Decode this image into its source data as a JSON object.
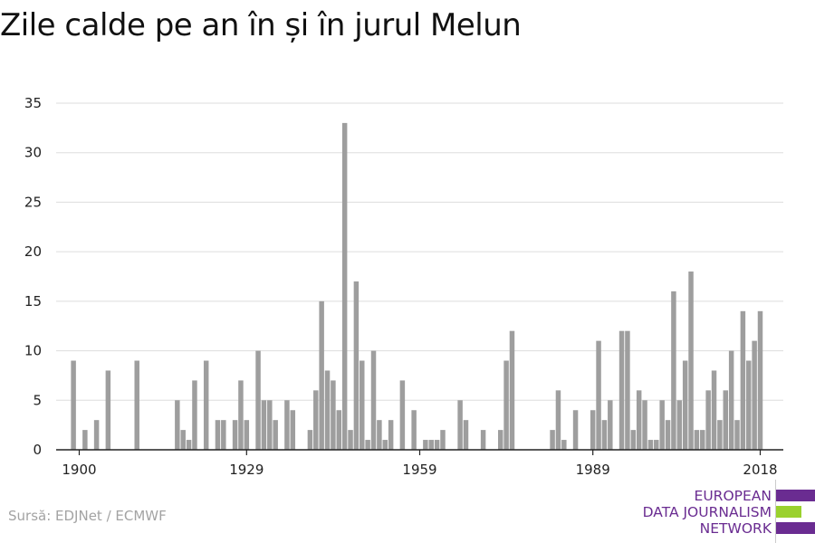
{
  "title": "Zile calde pe an în și în jurul Melun",
  "source": "Sursă: EDJNet / ECMWF",
  "logo": {
    "lines": [
      "EUROPEAN",
      "DATA JOURNALISM",
      "NETWORK"
    ],
    "colors": [
      "#6a2c91",
      "#9ad12e",
      "#6a2c91"
    ]
  },
  "colors": {
    "bar": "#9e9e9e",
    "grid": "#dddddd",
    "axis": "#222222",
    "text": "#222222"
  },
  "chart_data": {
    "type": "bar",
    "title": "Zile calde pe an în și în jurul Melun",
    "xlabel": "",
    "ylabel": "",
    "ylim": [
      0,
      35
    ],
    "xlim": [
      1896,
      2022
    ],
    "yticks": [
      0,
      5,
      10,
      15,
      20,
      25,
      30,
      35
    ],
    "xticks": [
      1900,
      1929,
      1959,
      1989,
      2018
    ],
    "grid": true,
    "x": [
      1899,
      1900,
      1901,
      1902,
      1903,
      1904,
      1905,
      1906,
      1907,
      1908,
      1909,
      1910,
      1911,
      1912,
      1913,
      1914,
      1915,
      1916,
      1917,
      1918,
      1919,
      1920,
      1921,
      1922,
      1923,
      1924,
      1925,
      1926,
      1927,
      1928,
      1929,
      1930,
      1931,
      1932,
      1933,
      1934,
      1935,
      1936,
      1937,
      1938,
      1939,
      1940,
      1941,
      1942,
      1943,
      1944,
      1945,
      1946,
      1947,
      1948,
      1949,
      1950,
      1951,
      1952,
      1953,
      1954,
      1955,
      1956,
      1957,
      1958,
      1959,
      1960,
      1961,
      1962,
      1963,
      1964,
      1965,
      1966,
      1967,
      1968,
      1969,
      1970,
      1971,
      1972,
      1973,
      1974,
      1975,
      1976,
      1977,
      1978,
      1979,
      1980,
      1981,
      1982,
      1983,
      1984,
      1985,
      1986,
      1987,
      1988,
      1989,
      1990,
      1991,
      1992,
      1993,
      1994,
      1995,
      1996,
      1997,
      1998,
      1999,
      2000,
      2001,
      2002,
      2003,
      2004,
      2005,
      2006,
      2007,
      2008,
      2009,
      2010,
      2011,
      2012,
      2013,
      2014,
      2015,
      2016,
      2017,
      2018
    ],
    "values": [
      9,
      0,
      2,
      0,
      3,
      0,
      8,
      0,
      0,
      0,
      0,
      9,
      0,
      0,
      0,
      0,
      0,
      0,
      5,
      2,
      1,
      7,
      0,
      9,
      0,
      3,
      3,
      0,
      3,
      7,
      3,
      0,
      10,
      5,
      5,
      3,
      0,
      5,
      4,
      0,
      0,
      2,
      6,
      15,
      8,
      7,
      4,
      33,
      2,
      17,
      9,
      1,
      10,
      3,
      1,
      3,
      0,
      7,
      0,
      4,
      0,
      1,
      1,
      1,
      2,
      0,
      0,
      5,
      3,
      0,
      0,
      2,
      0,
      0,
      2,
      9,
      12,
      0,
      0,
      0,
      0,
      0,
      0,
      2,
      6,
      1,
      0,
      4,
      0,
      0,
      4,
      11,
      3,
      5,
      0,
      12,
      12,
      2,
      6,
      5,
      1,
      1,
      5,
      3,
      16,
      5,
      9,
      18,
      2,
      2,
      6,
      8,
      3,
      6,
      10,
      3,
      14,
      9,
      11,
      14
    ]
  }
}
